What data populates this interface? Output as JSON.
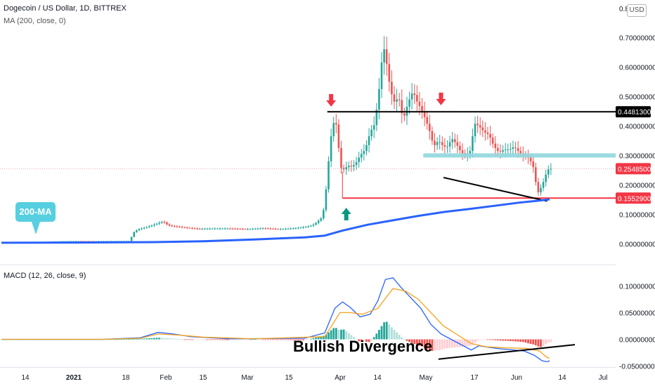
{
  "header": {
    "title": "Dogecoin / US Dollar, 1D, BITTREX",
    "ma_label": "MA (200, close, 0)",
    "macd_label": "MACD (12, 26, close, 9)",
    "currency": "USD"
  },
  "annotations": {
    "ma_callout": "200-MA",
    "divergence": "Bullish Divergence",
    "resistance_level": 0.44813,
    "support_level": 0.15529,
    "last_price": 0.25485,
    "colors": {
      "resistance_line": "#000000",
      "support_line": "#f23645",
      "zone": "#8fd7dd",
      "ma_line": "#2962ff",
      "down_arrow": "#f23645",
      "up_arrow": "#089981",
      "callout": "#56cfe1"
    }
  },
  "chart_data": [
    {
      "type": "candlestick",
      "title": "Dogecoin / US Dollar, 1D, BITTREX",
      "y_axis_side": "right",
      "ylim": [
        -0.02,
        0.8
      ],
      "y_ticks": [
        0.0,
        0.1,
        0.2,
        0.3,
        0.4,
        0.5,
        0.6,
        0.7
      ],
      "y_tick_labels": [
        "0.00000000",
        "0.10000000",
        "0.20000000",
        "0.30000000",
        "0.40000000",
        "0.50000000",
        "0.60000000",
        "0.70000000"
      ],
      "y_top_label": "0.8",
      "price_labels": [
        "0.44813000",
        "0.25485000",
        "0.15529000"
      ],
      "x_tick_labels": [
        "14",
        "2021",
        "18",
        "Feb",
        "15",
        "Mar",
        "15",
        "Apr",
        "14",
        "May",
        "17",
        "Jun",
        "14",
        "Jul"
      ],
      "price_path": [
        [
          0,
          0.0046
        ],
        [
          8,
          0.0047
        ],
        [
          14,
          0.0049
        ],
        [
          18,
          0.0075
        ],
        [
          24,
          0.0089
        ],
        [
          30,
          0.0095
        ],
        [
          36,
          0.0092
        ],
        [
          43,
          0.0095
        ],
        [
          51,
          0.0097
        ],
        [
          52,
          0.037
        ],
        [
          54,
          0.049
        ],
        [
          58,
          0.058
        ],
        [
          62,
          0.07
        ],
        [
          64,
          0.076
        ],
        [
          66,
          0.063
        ],
        [
          68,
          0.06
        ],
        [
          72,
          0.056
        ],
        [
          78,
          0.051
        ],
        [
          84,
          0.052
        ],
        [
          90,
          0.052
        ],
        [
          97,
          0.05
        ],
        [
          104,
          0.053
        ],
        [
          110,
          0.05
        ],
        [
          116,
          0.053
        ],
        [
          119,
          0.056
        ],
        [
          122,
          0.06
        ],
        [
          124,
          0.067
        ],
        [
          127,
          0.09
        ],
        [
          128,
          0.14
        ],
        [
          129,
          0.23
        ],
        [
          130,
          0.33
        ],
        [
          131,
          0.4
        ],
        [
          132,
          0.42
        ],
        [
          133,
          0.39
        ],
        [
          134,
          0.26
        ],
        [
          136,
          0.25
        ],
        [
          137,
          0.27
        ],
        [
          138,
          0.26
        ],
        [
          140,
          0.27
        ],
        [
          142,
          0.3
        ],
        [
          144,
          0.32
        ],
        [
          145,
          0.35
        ],
        [
          146,
          0.38
        ],
        [
          148,
          0.41
        ],
        [
          149,
          0.5
        ],
        [
          150,
          0.55
        ],
        [
          151,
          0.68
        ],
        [
          152,
          0.64
        ],
        [
          153,
          0.58
        ],
        [
          154,
          0.52
        ],
        [
          156,
          0.47
        ],
        [
          157,
          0.51
        ],
        [
          159,
          0.42
        ],
        [
          161,
          0.48
        ],
        [
          163,
          0.52
        ],
        [
          164,
          0.49
        ],
        [
          166,
          0.46
        ],
        [
          168,
          0.42
        ],
        [
          170,
          0.37
        ],
        [
          171,
          0.33
        ],
        [
          173,
          0.35
        ],
        [
          175,
          0.33
        ],
        [
          177,
          0.33
        ],
        [
          178,
          0.36
        ],
        [
          180,
          0.34
        ],
        [
          182,
          0.31
        ],
        [
          184,
          0.3
        ],
        [
          186,
          0.32
        ],
        [
          187,
          0.41
        ],
        [
          189,
          0.4
        ],
        [
          191,
          0.38
        ],
        [
          193,
          0.37
        ],
        [
          195,
          0.33
        ],
        [
          197,
          0.31
        ],
        [
          199,
          0.32
        ],
        [
          201,
          0.32
        ],
        [
          203,
          0.33
        ],
        [
          205,
          0.31
        ],
        [
          207,
          0.3
        ],
        [
          209,
          0.29
        ],
        [
          211,
          0.25
        ],
        [
          212,
          0.17
        ],
        [
          213,
          0.18
        ],
        [
          215,
          0.22
        ],
        [
          216,
          0.25
        ],
        [
          217,
          0.255
        ]
      ],
      "ma200_path": [
        [
          0,
          0.004
        ],
        [
          30,
          0.0045
        ],
        [
          60,
          0.006
        ],
        [
          80,
          0.009
        ],
        [
          100,
          0.015
        ],
        [
          120,
          0.022
        ],
        [
          128,
          0.028
        ],
        [
          135,
          0.045
        ],
        [
          145,
          0.065
        ],
        [
          155,
          0.08
        ],
        [
          165,
          0.095
        ],
        [
          175,
          0.108
        ],
        [
          185,
          0.118
        ],
        [
          195,
          0.129
        ],
        [
          205,
          0.14
        ],
        [
          213,
          0.147
        ],
        [
          217,
          0.151
        ]
      ]
    },
    {
      "type": "line",
      "title": "MACD (12, 26, close, 9)",
      "y_axis_side": "right",
      "ylim": [
        -0.055,
        0.13
      ],
      "y_ticks": [
        -0.05,
        0.0,
        0.05,
        0.1
      ],
      "y_tick_labels": [
        "-0.05000000",
        "0.00000000",
        "0.05000000",
        "0.10000000"
      ],
      "series": [
        {
          "color": "#2962ff",
          "points": [
            [
              0,
              0
            ],
            [
              40,
              0
            ],
            [
              55,
              0.003
            ],
            [
              62,
              0.013
            ],
            [
              68,
              0.01
            ],
            [
              75,
              0.005
            ],
            [
              90,
              0.001
            ],
            [
              120,
              0.002
            ],
            [
              128,
              0.012
            ],
            [
              132,
              0.058
            ],
            [
              135,
              0.07
            ],
            [
              138,
              0.06
            ],
            [
              142,
              0.042
            ],
            [
              146,
              0.047
            ],
            [
              149,
              0.072
            ],
            [
              152,
              0.112
            ],
            [
              155,
              0.115
            ],
            [
              158,
              0.098
            ],
            [
              162,
              0.078
            ],
            [
              166,
              0.058
            ],
            [
              170,
              0.028
            ],
            [
              174,
              0.01
            ],
            [
              178,
              0.0
            ],
            [
              182,
              -0.01
            ],
            [
              186,
              -0.02
            ],
            [
              189,
              -0.012
            ],
            [
              193,
              -0.015
            ],
            [
              198,
              -0.018
            ],
            [
              203,
              -0.02
            ],
            [
              207,
              -0.022
            ],
            [
              211,
              -0.03
            ],
            [
              214,
              -0.04
            ],
            [
              216,
              -0.042
            ],
            [
              217,
              -0.04
            ]
          ]
        },
        {
          "color": "#f7a21b",
          "points": [
            [
              0,
              0
            ],
            [
              40,
              0
            ],
            [
              55,
              0.002
            ],
            [
              62,
              0.01
            ],
            [
              70,
              0.008
            ],
            [
              80,
              0.004
            ],
            [
              100,
              0.001
            ],
            [
              128,
              0.005
            ],
            [
              134,
              0.05
            ],
            [
              138,
              0.05
            ],
            [
              143,
              0.047
            ],
            [
              149,
              0.058
            ],
            [
              155,
              0.095
            ],
            [
              160,
              0.09
            ],
            [
              165,
              0.075
            ],
            [
              170,
              0.05
            ],
            [
              175,
              0.025
            ],
            [
              180,
              0.01
            ],
            [
              186,
              -0.008
            ],
            [
              192,
              -0.014
            ],
            [
              200,
              -0.016
            ],
            [
              208,
              -0.017
            ],
            [
              213,
              -0.022
            ],
            [
              216,
              -0.034
            ],
            [
              217,
              -0.035
            ]
          ]
        }
      ]
    }
  ]
}
